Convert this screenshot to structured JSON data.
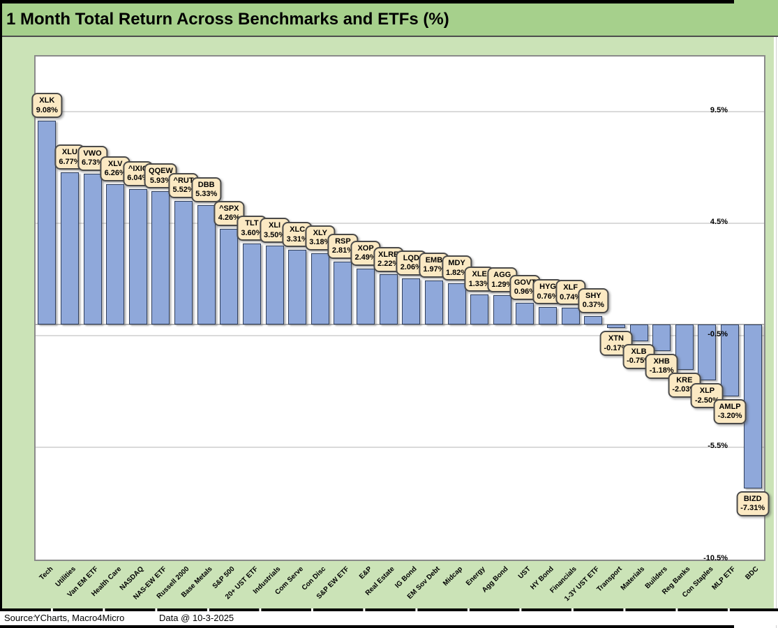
{
  "title": "1 Month Total Return Across Benchmarks and ETFs (%)",
  "footer": {
    "source_label": "Source:",
    "source_value": "YCharts, Macro4Micro",
    "data_note": "Data @ 10-3-2025"
  },
  "colors": {
    "header_green": "#a6d08c",
    "body_green": "#cbe3b7",
    "bar_fill": "#8fa8da",
    "bar_border": "#2f3e5c",
    "callout_fill": "#fbe9c3",
    "callout_border": "#4a4a4a",
    "gridline": "#dadada",
    "zero_line": "#b3b3b3",
    "plot_border": "#8a8a8a",
    "text": "#000000"
  },
  "chart_data": {
    "type": "bar",
    "title": "1 Month Total Return Across Benchmarks and ETFs (%)",
    "categories": [
      "Tech",
      "Utilities",
      "Van EM ETF",
      "Health Care",
      "NASDAQ",
      "NAS-EW ETF",
      "Russell 2000",
      "Base Metals",
      "S&P 500",
      "20+ UST ETF",
      "Industrials",
      "Com Serve",
      "Con Disc",
      "S&P EW ETF",
      "E&P",
      "Real Estate",
      "IG Bond",
      "EM Sov Debt",
      "Midcap",
      "Energy",
      "Agg Bond",
      "UST",
      "HY Bond",
      "Financials",
      "1-3Y UST ETF",
      "Transport",
      "Materials",
      "Builders",
      "Reg Banks",
      "Con Staples",
      "MLP ETF",
      "BDC"
    ],
    "tickers": [
      "XLK",
      "XLU",
      "VWO",
      "XLV",
      "^IXIC",
      "QQEW",
      "^RUT",
      "DBB",
      "^SPX",
      "TLT",
      "XLI",
      "XLC",
      "XLY",
      "RSP",
      "XOP",
      "XLRE",
      "LQD",
      "EMB",
      "MDY",
      "XLE",
      "AGG",
      "GOVT",
      "HYG",
      "XLF",
      "SHY",
      "XTN",
      "XLB",
      "XHB",
      "KRE",
      "XLP",
      "AMLP",
      "BIZD"
    ],
    "values": [
      9.08,
      6.77,
      6.73,
      6.26,
      6.04,
      5.93,
      5.52,
      5.33,
      4.26,
      3.6,
      3.5,
      3.31,
      3.18,
      2.81,
      2.49,
      2.22,
      2.06,
      1.97,
      1.82,
      1.33,
      1.29,
      0.96,
      0.76,
      0.74,
      0.37,
      -0.17,
      -0.75,
      -1.18,
      -2.03,
      -2.5,
      -3.2,
      -7.31
    ],
    "value_suffix": "%",
    "xlabel": "",
    "ylabel": "",
    "y_ticks": [
      {
        "value": 9.5,
        "label": "9.5%"
      },
      {
        "value": 4.5,
        "label": "4.5%"
      },
      {
        "value": -0.5,
        "label": "-0.5%"
      },
      {
        "value": -5.5,
        "label": "-5.5%"
      },
      {
        "value": -10.5,
        "label": "-10.5%"
      }
    ],
    "gridline_values": [
      9.5,
      4.5,
      -0.5,
      -5.5
    ],
    "ylim": [
      -10.5,
      11.95
    ],
    "zero_axis_line": true,
    "grid": true,
    "legend": false,
    "bar_label_style": "callout box with ticker and percent value"
  }
}
